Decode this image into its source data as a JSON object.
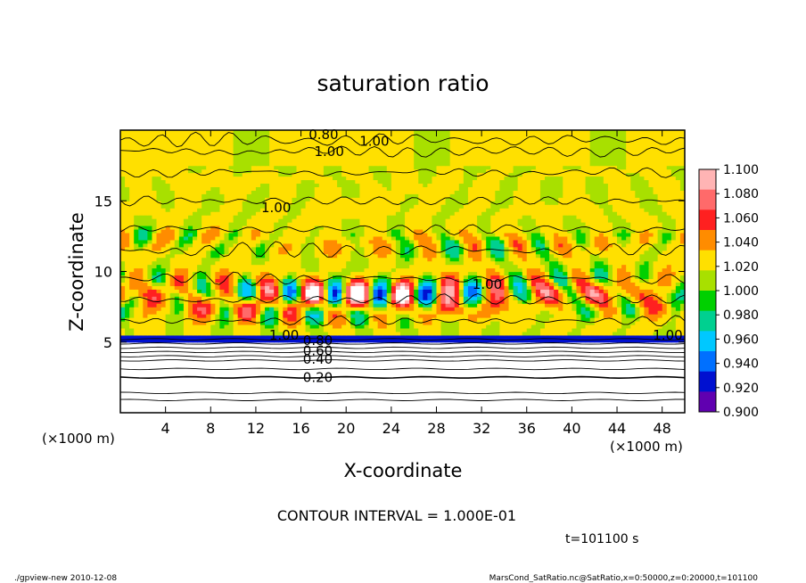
{
  "chart_data": {
    "type": "heatmap",
    "title": "saturation ratio",
    "xlabel": "X-coordinate",
    "ylabel": "Z-coordinate",
    "x_unit": "(×1000 m)",
    "x_unit_right": "(×1000 m)",
    "xlim": [
      0,
      50
    ],
    "ylim": [
      0,
      20
    ],
    "x_ticks": [
      4,
      8,
      12,
      16,
      20,
      24,
      28,
      32,
      36,
      40,
      44,
      48
    ],
    "y_ticks": [
      5,
      10,
      15
    ],
    "contour_labels": [
      {
        "text": "0.20",
        "x": 17.5,
        "z": 2.5
      },
      {
        "text": "0.40",
        "x": 17.5,
        "z": 3.8
      },
      {
        "text": "0.60",
        "x": 17.5,
        "z": 4.4
      },
      {
        "text": "0.80",
        "x": 17.5,
        "z": 5.1
      },
      {
        "text": "1.00",
        "x": 14.5,
        "z": 5.5
      },
      {
        "text": "1.00",
        "x": 32.5,
        "z": 9.1
      },
      {
        "text": "1.00",
        "x": 48.5,
        "z": 5.5
      },
      {
        "text": "1.00",
        "x": 18.5,
        "z": 18.5
      },
      {
        "text": "1.00",
        "x": 22.5,
        "z": 19.2
      },
      {
        "text": "1.00",
        "x": 13.8,
        "z": 14.5
      },
      {
        "text": "0.80",
        "x": 18.0,
        "z": 19.7
      }
    ],
    "colorbar": {
      "levels": [
        "1.100",
        "1.080",
        "1.060",
        "1.040",
        "1.020",
        "1.000",
        "0.980",
        "0.960",
        "0.940",
        "0.920",
        "0.900"
      ],
      "colors": [
        "#ffb4b4",
        "#ff6a6a",
        "#ff2020",
        "#ff8c00",
        "#ffe000",
        "#a8e000",
        "#00d000",
        "#00d090",
        "#00c8ff",
        "#0070ff",
        "#0010d0",
        "#6000b0"
      ]
    },
    "legend": "right"
  },
  "contour_interval": "CONTOUR INTERVAL = 1.000E-01",
  "time_label": "t=101100 s",
  "footer": {
    "left": "./gpview-new   2010-12-08",
    "right": "MarsCond_SatRatio.nc@SatRatio,x=0:50000,z=0:20000,t=101100"
  }
}
